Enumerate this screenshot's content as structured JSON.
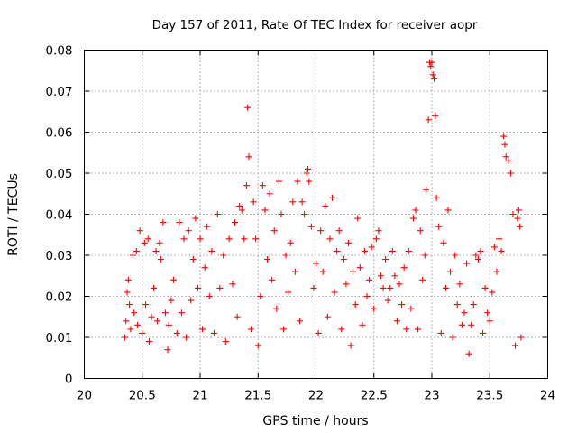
{
  "chart_data": {
    "type": "scatter",
    "title": "Day 157 of 2011, Rate Of TEC Index for receiver aopr",
    "xlabel": "GPS time / hours",
    "ylabel": "ROTI / TECUs",
    "xlim": [
      20,
      24
    ],
    "ylim": [
      0,
      0.08
    ],
    "xticks": [
      20,
      20.5,
      21,
      21.5,
      22,
      22.5,
      23,
      23.5,
      24
    ],
    "yticks": [
      0,
      0.01,
      0.02,
      0.03,
      0.04,
      0.05,
      0.06,
      0.07,
      0.08
    ],
    "xtick_labels": [
      "20",
      "20.5",
      "21",
      "21.5",
      "22",
      "22.5",
      "23",
      "23.5",
      "24"
    ],
    "ytick_labels": [
      "0",
      "0.01",
      "0.02",
      "0.03",
      "0.04",
      "0.05",
      "0.06",
      "0.07",
      "0.08"
    ],
    "grid": true,
    "marker": "+",
    "color": "#ff0000",
    "series": [
      {
        "name": "ROTI",
        "points": [
          [
            20.35,
            0.01
          ],
          [
            20.36,
            0.014
          ],
          [
            20.37,
            0.021
          ],
          [
            20.38,
            0.024
          ],
          [
            20.39,
            0.018
          ],
          [
            20.4,
            0.012
          ],
          [
            20.42,
            0.03
          ],
          [
            20.43,
            0.016
          ],
          [
            20.45,
            0.031
          ],
          [
            20.46,
            0.013
          ],
          [
            20.48,
            0.036
          ],
          [
            20.5,
            0.011
          ],
          [
            20.52,
            0.033
          ],
          [
            20.53,
            0.018
          ],
          [
            20.55,
            0.034
          ],
          [
            20.56,
            0.009
          ],
          [
            20.58,
            0.015
          ],
          [
            20.6,
            0.022
          ],
          [
            20.62,
            0.031
          ],
          [
            20.63,
            0.014
          ],
          [
            20.65,
            0.033
          ],
          [
            20.66,
            0.029
          ],
          [
            20.68,
            0.038
          ],
          [
            20.7,
            0.016
          ],
          [
            20.72,
            0.007
          ],
          [
            20.73,
            0.013
          ],
          [
            20.75,
            0.019
          ],
          [
            20.77,
            0.024
          ],
          [
            20.8,
            0.011
          ],
          [
            20.82,
            0.038
          ],
          [
            20.84,
            0.016
          ],
          [
            20.86,
            0.034
          ],
          [
            20.88,
            0.01
          ],
          [
            20.9,
            0.036
          ],
          [
            20.92,
            0.019
          ],
          [
            20.94,
            0.029
          ],
          [
            20.96,
            0.039
          ],
          [
            20.98,
            0.022
          ],
          [
            21.0,
            0.034
          ],
          [
            21.02,
            0.012
          ],
          [
            21.04,
            0.027
          ],
          [
            21.06,
            0.037
          ],
          [
            21.08,
            0.02
          ],
          [
            21.1,
            0.031
          ],
          [
            21.12,
            0.011
          ],
          [
            21.15,
            0.04
          ],
          [
            21.17,
            0.022
          ],
          [
            21.2,
            0.03
          ],
          [
            21.22,
            0.009
          ],
          [
            21.25,
            0.034
          ],
          [
            21.28,
            0.023
          ],
          [
            21.3,
            0.038
          ],
          [
            21.32,
            0.015
          ],
          [
            21.34,
            0.042
          ],
          [
            21.36,
            0.041
          ],
          [
            21.38,
            0.034
          ],
          [
            21.4,
            0.047
          ],
          [
            21.41,
            0.066
          ],
          [
            21.42,
            0.054
          ],
          [
            21.44,
            0.012
          ],
          [
            21.46,
            0.043
          ],
          [
            21.48,
            0.034
          ],
          [
            21.5,
            0.008
          ],
          [
            21.52,
            0.02
          ],
          [
            21.54,
            0.047
          ],
          [
            21.56,
            0.041
          ],
          [
            21.58,
            0.029
          ],
          [
            21.6,
            0.045
          ],
          [
            21.62,
            0.024
          ],
          [
            21.64,
            0.036
          ],
          [
            21.66,
            0.017
          ],
          [
            21.68,
            0.048
          ],
          [
            21.7,
            0.04
          ],
          [
            21.72,
            0.012
          ],
          [
            21.74,
            0.03
          ],
          [
            21.76,
            0.021
          ],
          [
            21.78,
            0.033
          ],
          [
            21.8,
            0.043
          ],
          [
            21.82,
            0.026
          ],
          [
            21.84,
            0.048
          ],
          [
            21.86,
            0.014
          ],
          [
            21.88,
            0.043
          ],
          [
            21.9,
            0.04
          ],
          [
            21.92,
            0.05
          ],
          [
            21.93,
            0.051
          ],
          [
            21.94,
            0.048
          ],
          [
            21.96,
            0.037
          ],
          [
            21.98,
            0.022
          ],
          [
            22.0,
            0.028
          ],
          [
            22.02,
            0.011
          ],
          [
            22.04,
            0.036
          ],
          [
            22.06,
            0.026
          ],
          [
            22.08,
            0.042
          ],
          [
            22.1,
            0.015
          ],
          [
            22.12,
            0.034
          ],
          [
            22.14,
            0.044
          ],
          [
            22.16,
            0.021
          ],
          [
            22.18,
            0.031
          ],
          [
            22.2,
            0.036
          ],
          [
            22.22,
            0.012
          ],
          [
            22.24,
            0.029
          ],
          [
            22.26,
            0.023
          ],
          [
            22.28,
            0.033
          ],
          [
            22.3,
            0.008
          ],
          [
            22.32,
            0.026
          ],
          [
            22.34,
            0.018
          ],
          [
            22.36,
            0.039
          ],
          [
            22.38,
            0.027
          ],
          [
            22.4,
            0.013
          ],
          [
            22.42,
            0.031
          ],
          [
            22.44,
            0.02
          ],
          [
            22.46,
            0.024
          ],
          [
            22.48,
            0.032
          ],
          [
            22.5,
            0.017
          ],
          [
            22.52,
            0.034
          ],
          [
            22.54,
            0.036
          ],
          [
            22.56,
            0.025
          ],
          [
            22.58,
            0.022
          ],
          [
            22.6,
            0.029
          ],
          [
            22.62,
            0.019
          ],
          [
            22.64,
            0.022
          ],
          [
            22.66,
            0.031
          ],
          [
            22.68,
            0.025
          ],
          [
            22.7,
            0.014
          ],
          [
            22.72,
            0.023
          ],
          [
            22.74,
            0.018
          ],
          [
            22.76,
            0.027
          ],
          [
            22.78,
            0.012
          ],
          [
            22.8,
            0.031
          ],
          [
            22.82,
            0.017
          ],
          [
            22.84,
            0.039
          ],
          [
            22.86,
            0.041
          ],
          [
            22.88,
            0.012
          ],
          [
            22.9,
            0.036
          ],
          [
            22.92,
            0.024
          ],
          [
            22.94,
            0.03
          ],
          [
            22.95,
            0.046
          ],
          [
            22.97,
            0.063
          ],
          [
            22.98,
            0.077
          ],
          [
            22.99,
            0.076
          ],
          [
            23.0,
            0.077
          ],
          [
            23.01,
            0.074
          ],
          [
            23.02,
            0.073
          ],
          [
            23.03,
            0.064
          ],
          [
            23.04,
            0.044
          ],
          [
            23.06,
            0.037
          ],
          [
            23.08,
            0.011
          ],
          [
            23.1,
            0.033
          ],
          [
            23.12,
            0.022
          ],
          [
            23.14,
            0.041
          ],
          [
            23.16,
            0.026
          ],
          [
            23.18,
            0.01
          ],
          [
            23.2,
            0.03
          ],
          [
            23.22,
            0.018
          ],
          [
            23.24,
            0.023
          ],
          [
            23.26,
            0.013
          ],
          [
            23.28,
            0.016
          ],
          [
            23.3,
            0.028
          ],
          [
            23.32,
            0.006
          ],
          [
            23.34,
            0.013
          ],
          [
            23.36,
            0.018
          ],
          [
            23.38,
            0.03
          ],
          [
            23.4,
            0.029
          ],
          [
            23.42,
            0.031
          ],
          [
            23.44,
            0.011
          ],
          [
            23.46,
            0.022
          ],
          [
            23.48,
            0.016
          ],
          [
            23.5,
            0.014
          ],
          [
            23.52,
            0.021
          ],
          [
            23.54,
            0.032
          ],
          [
            23.56,
            0.026
          ],
          [
            23.58,
            0.034
          ],
          [
            23.6,
            0.031
          ],
          [
            23.62,
            0.059
          ],
          [
            23.63,
            0.057
          ],
          [
            23.64,
            0.054
          ],
          [
            23.66,
            0.053
          ],
          [
            23.68,
            0.05
          ],
          [
            23.7,
            0.04
          ],
          [
            23.72,
            0.008
          ],
          [
            23.74,
            0.039
          ],
          [
            23.75,
            0.041
          ],
          [
            23.76,
            0.037
          ],
          [
            23.77,
            0.01
          ]
        ]
      }
    ]
  }
}
